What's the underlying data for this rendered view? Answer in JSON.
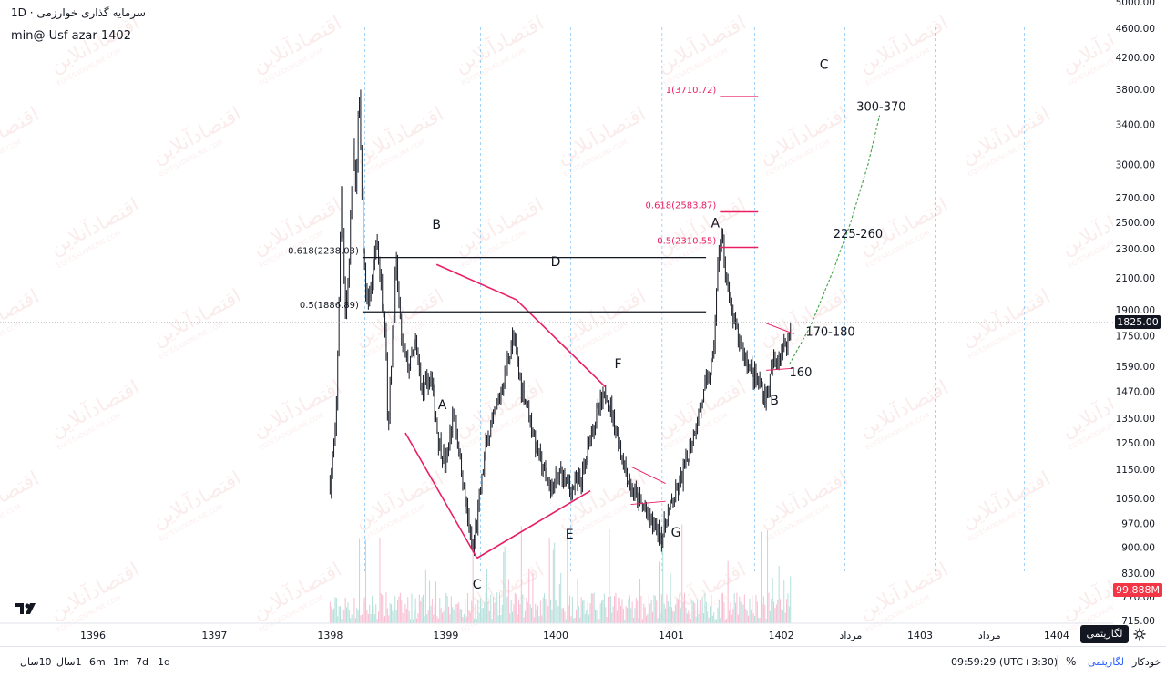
{
  "header": {
    "symbol_line": "سرمایه گذاری خوارزمی  ·  1D",
    "ticker_line": "min@ Usf  azar 1402"
  },
  "watermark": {
    "text": "اقتصادآنلاین",
    "sub": "EQTESADONLINE.COM"
  },
  "price_tags": {
    "last_price": "1825.00",
    "volume": "99.888M"
  },
  "colors": {
    "candle": "#131722",
    "pattern_lines": "#e91e63",
    "fib_lines": "#e91e63",
    "fib_labels": "#e91e63",
    "level_lines": "#131722",
    "projection": "#43a047",
    "vol_up": "#b2dfdb",
    "vol_down": "#f8bbd0",
    "time_gridline": "#42a5f5",
    "last_price_line": "#9598a1",
    "watermark": "#e57373"
  },
  "chart_data": {
    "type": "candlestick",
    "scale": "log",
    "interval": "1D",
    "ylim": [
      715,
      5000
    ],
    "y_ticks": [
      "5000.00",
      "4600.00",
      "4200.00",
      "3800.00",
      "3400.00",
      "3000.00",
      "2700.00",
      "2500.00",
      "2300.00",
      "2100.00",
      "1900.00",
      "1750.00",
      "1590.00",
      "1470.00",
      "1350.00",
      "1250.00",
      "1150.00",
      "1050.00",
      "970.00",
      "900.00",
      "830.00",
      "770.00",
      "715.00"
    ],
    "x_ticks": [
      "1396",
      "1397",
      "1398",
      "1399",
      "1400",
      "1401",
      "1402",
      "مرداد",
      "1403",
      "مرداد",
      "1404"
    ],
    "price_path": [
      [
        1398.05,
        1100
      ],
      [
        1398.1,
        1300
      ],
      [
        1398.15,
        2800
      ],
      [
        1398.18,
        1880
      ],
      [
        1398.21,
        2100
      ],
      [
        1398.25,
        3200
      ],
      [
        1398.27,
        2700
      ],
      [
        1398.3,
        3800
      ],
      [
        1398.34,
        2200
      ],
      [
        1398.37,
        1950
      ],
      [
        1398.41,
        2050
      ],
      [
        1398.45,
        2390
      ],
      [
        1398.49,
        2050
      ],
      [
        1398.53,
        1800
      ],
      [
        1398.55,
        1290
      ],
      [
        1398.62,
        2210
      ],
      [
        1398.67,
        1700
      ],
      [
        1398.73,
        1580
      ],
      [
        1398.79,
        1700
      ],
      [
        1398.85,
        1460
      ],
      [
        1398.92,
        1540
      ],
      [
        1398.99,
        1250
      ],
      [
        1399.05,
        1170
      ],
      [
        1399.12,
        1380
      ],
      [
        1399.2,
        1100
      ],
      [
        1399.28,
        880
      ],
      [
        1399.33,
        1010
      ],
      [
        1399.4,
        1250
      ],
      [
        1399.47,
        1350
      ],
      [
        1399.55,
        1520
      ],
      [
        1399.63,
        1750
      ],
      [
        1399.7,
        1500
      ],
      [
        1399.76,
        1400
      ],
      [
        1399.82,
        1250
      ],
      [
        1399.89,
        1150
      ],
      [
        1399.96,
        1080
      ],
      [
        1400.05,
        1140
      ],
      [
        1400.13,
        1080
      ],
      [
        1400.23,
        1120
      ],
      [
        1400.31,
        1310
      ],
      [
        1400.39,
        1410
      ],
      [
        1400.44,
        1460
      ],
      [
        1400.5,
        1350
      ],
      [
        1400.57,
        1200
      ],
      [
        1400.65,
        1080
      ],
      [
        1400.72,
        1040
      ],
      [
        1400.79,
        1000
      ],
      [
        1400.86,
        960
      ],
      [
        1400.92,
        930
      ],
      [
        1400.97,
        1000
      ],
      [
        1401.04,
        1060
      ],
      [
        1401.12,
        1160
      ],
      [
        1401.21,
        1320
      ],
      [
        1401.29,
        1480
      ],
      [
        1401.36,
        1620
      ],
      [
        1401.41,
        2300
      ],
      [
        1401.44,
        2380
      ],
      [
        1401.47,
        2150
      ],
      [
        1401.51,
        1900
      ],
      [
        1401.57,
        1760
      ],
      [
        1401.63,
        1650
      ],
      [
        1401.7,
        1560
      ],
      [
        1401.76,
        1500
      ],
      [
        1401.82,
        1440
      ],
      [
        1401.88,
        1600
      ],
      [
        1401.94,
        1660
      ],
      [
        1402.0,
        1720
      ],
      [
        1402.04,
        1825
      ]
    ],
    "annotations": {
      "wave_labels": [
        {
          "text": "A",
          "x": 1399.02,
          "y": 1390
        },
        {
          "text": "B",
          "x": 1398.97,
          "y": 2450
        },
        {
          "text": "C",
          "x": 1399.32,
          "y": 790
        },
        {
          "text": "D",
          "x": 1400.0,
          "y": 2180
        },
        {
          "text": "E",
          "x": 1400.12,
          "y": 925
        },
        {
          "text": "F",
          "x": 1400.54,
          "y": 1580
        },
        {
          "text": "G",
          "x": 1401.04,
          "y": 930
        },
        {
          "text": "A",
          "x": 1401.38,
          "y": 2460
        },
        {
          "text": "B",
          "x": 1401.89,
          "y": 1410
        },
        {
          "text": "C",
          "x": 1402.32,
          "y": 4050
        }
      ],
      "fib_levels": [
        {
          "label": "0.618(2238.03)",
          "value": 2238.03
        },
        {
          "label": "0.5(1886.89)",
          "value": 1886.89
        },
        {
          "label": "1(3710.72)",
          "value": 3710.72
        },
        {
          "label": "0.618(2583.87)",
          "value": 2583.87
        },
        {
          "label": "0.5(2310.55)",
          "value": 2310.55
        }
      ],
      "targets": [
        "300-370",
        "225-260",
        "170-180",
        "160"
      ]
    }
  },
  "bottom_bar": {
    "ranges": [
      "10سال",
      "1سال",
      "6m",
      "1m",
      "7d",
      "1d"
    ],
    "clock": "09:59:29 (UTC+3:30)",
    "percent_label": "%",
    "log_label": "لگاریتمی",
    "auto_label": "خودکار",
    "log_tooltip": "لگاریتمی"
  }
}
